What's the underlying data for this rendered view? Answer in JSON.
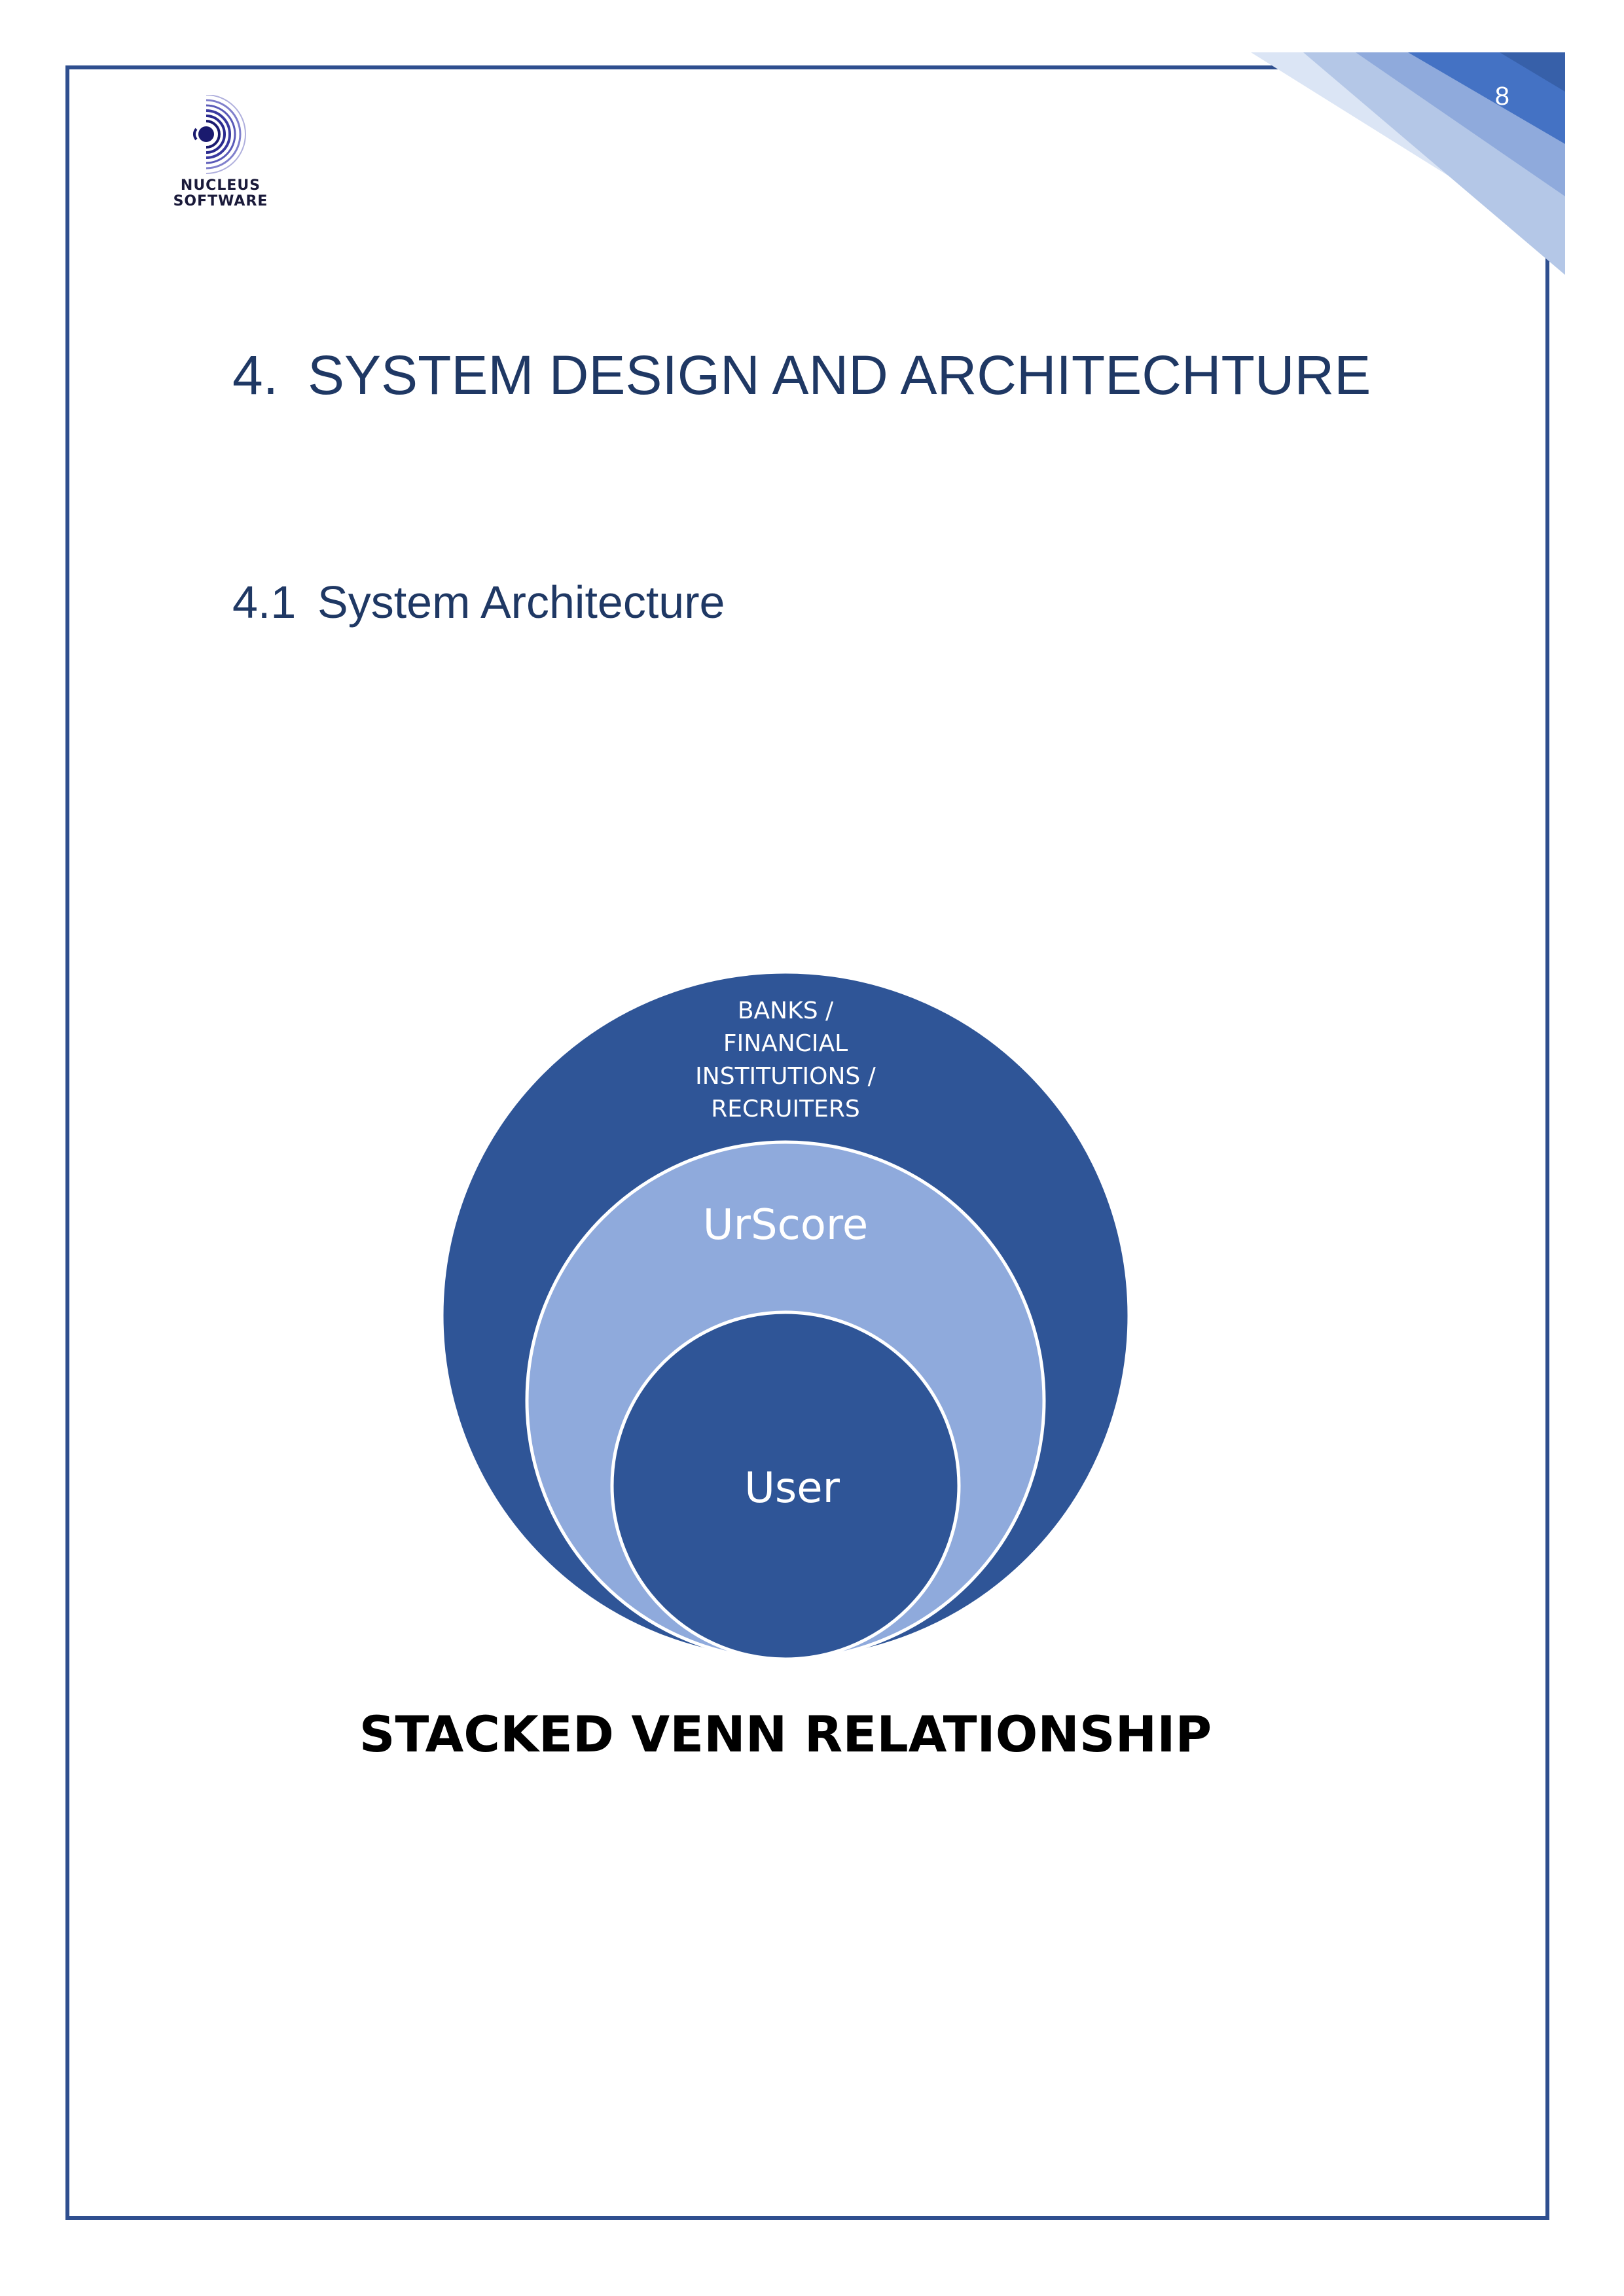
{
  "page": {
    "number": "8",
    "border_color": "#2f4f8f"
  },
  "logo": {
    "line1": "NUCLEUS",
    "line2": "SOFTWARE"
  },
  "chapter": {
    "number": "4.",
    "title": "SYSTEM DESIGN AND ARCHITECHTURE"
  },
  "section": {
    "number": "4.1",
    "title": "System Architecture"
  },
  "diagram": {
    "type": "stacked-venn",
    "outer_label": [
      "BANKS /",
      "FINANCIAL",
      "INSTITUTIONS /",
      "RECRUITERS"
    ],
    "middle_label": "UrScore",
    "inner_label": "User",
    "colors": {
      "outer": "#2f5597",
      "middle": "#8faadc",
      "inner": "#2f5597"
    },
    "caption": "STACKED VENN RELATIONSHIP"
  }
}
